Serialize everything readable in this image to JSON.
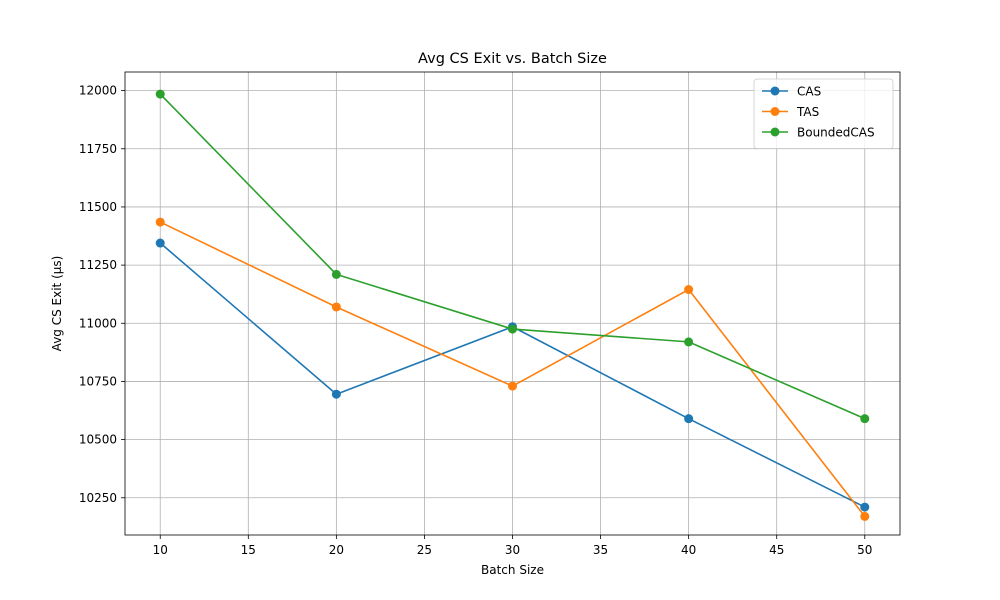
{
  "chart_data": {
    "type": "line",
    "title": "Avg CS Exit vs. Batch Size",
    "xlabel": "Batch Size",
    "ylabel": "Avg CS Exit (µs)",
    "x": [
      10,
      20,
      30,
      40,
      50
    ],
    "xlim": [
      8,
      52
    ],
    "ylim": [
      10090,
      12080
    ],
    "xticks": [
      10,
      15,
      20,
      25,
      30,
      35,
      40,
      45,
      50
    ],
    "yticks": [
      10250,
      10500,
      10750,
      11000,
      11250,
      11500,
      11750,
      12000
    ],
    "grid": true,
    "legend_position": "top-right",
    "series": [
      {
        "name": "CAS",
        "color": "#1f77b4",
        "values": [
          11345,
          10695,
          10985,
          10590,
          10210
        ]
      },
      {
        "name": "TAS",
        "color": "#ff7f0e",
        "values": [
          11435,
          11070,
          10730,
          11145,
          10170
        ]
      },
      {
        "name": "BoundedCAS",
        "color": "#2ca02c",
        "values": [
          11985,
          11210,
          10975,
          10920,
          10590
        ]
      }
    ]
  }
}
